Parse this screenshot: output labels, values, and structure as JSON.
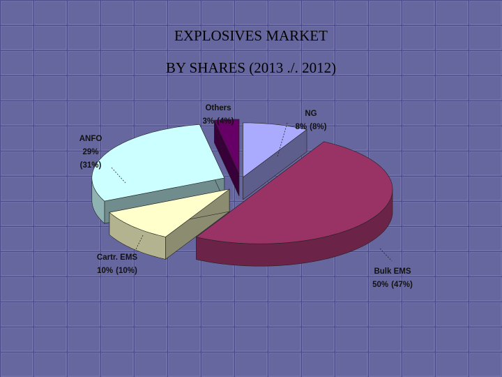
{
  "chart_data": {
    "type": "pie",
    "title": "EXPLOSIVES MARKET",
    "subtitle": "BY SHARES (2013 ./. 2012)",
    "categories": [
      "NG",
      "Bulk EMS",
      "Cartr. EMS",
      "ANFO",
      "Others"
    ],
    "colors": [
      "#aaaaff",
      "#993366",
      "#ffffcc",
      "#ccffff",
      "#660066"
    ],
    "series": [
      {
        "values": [
          8,
          50,
          10,
          29,
          3
        ],
        "value_labels": [
          "8%",
          "50%",
          "10%",
          "29%",
          "3%"
        ]
      },
      {
        "values": [
          8,
          47,
          10,
          31,
          4
        ],
        "value_labels": [
          "(8%)",
          "(47%)",
          "(10%)",
          "(31%)",
          "(4%)"
        ]
      }
    ]
  }
}
